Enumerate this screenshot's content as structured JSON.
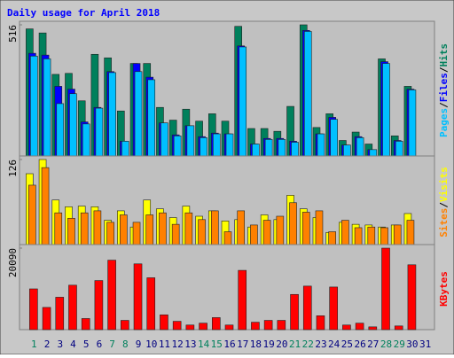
{
  "chart_data": [
    {
      "type": "bar",
      "title": "Daily usage for April 2018",
      "categories": [
        "1",
        "2",
        "3",
        "4",
        "5",
        "6",
        "7",
        "8",
        "9",
        "10",
        "11",
        "12",
        "13",
        "14",
        "15",
        "16",
        "17",
        "18",
        "19",
        "20",
        "21",
        "22",
        "23",
        "24",
        "25",
        "26",
        "27",
        "28",
        "29",
        "30",
        "31"
      ],
      "category_colors": [
        "#00805C",
        "#000080",
        "#000080",
        "#000080",
        "#000080",
        "#000080",
        "#00805C",
        "#00805C",
        "#000080",
        "#000080",
        "#000080",
        "#000080",
        "#000080",
        "#00805C",
        "#00805C",
        "#000080",
        "#000080",
        "#000080",
        "#000080",
        "#000080",
        "#00805C",
        "#00805C",
        "#000080",
        "#000080",
        "#000080",
        "#000080",
        "#000080",
        "#00805C",
        "#00805C",
        "#000080",
        "#000080"
      ],
      "separator": "/",
      "ylim": [
        0,
        516
      ],
      "yticks": [
        516
      ],
      "series": [
        {
          "name": "Hits",
          "color": "#00805C",
          "values": [
            500,
            484,
            321,
            325,
            217,
            400,
            386,
            177,
            364,
            364,
            191,
            141,
            184,
            137,
            166,
            137,
            510,
            108,
            108,
            97,
            195,
            516,
            112,
            166,
            61,
            94,
            47,
            382,
            79,
            274,
            null
          ]
        },
        {
          "name": "Files",
          "color": "#0000FF",
          "values": [
            404,
            397,
            274,
            263,
            134,
            191,
            332,
            58,
            364,
            310,
            130,
            83,
            119,
            76,
            90,
            87,
            433,
            47,
            69,
            69,
            58,
            494,
            87,
            152,
            43,
            76,
            25,
            371,
            61,
            263,
            null
          ]
        },
        {
          "name": "Pages",
          "color": "#00C0FF",
          "values": [
            393,
            382,
            206,
            245,
            126,
            188,
            328,
            58,
            332,
            300,
            130,
            79,
            119,
            72,
            87,
            87,
            429,
            47,
            65,
            65,
            54,
            490,
            87,
            144,
            43,
            72,
            25,
            364,
            58,
            260,
            null
          ]
        }
      ]
    },
    {
      "type": "bar",
      "ylim": [
        0,
        126
      ],
      "yticks": [
        126
      ],
      "series": [
        {
          "name": "Visits",
          "color": "#FFFF00",
          "values": [
            105,
            126,
            66,
            56,
            57,
            56,
            36,
            50,
            26,
            66,
            53,
            40,
            57,
            42,
            50,
            35,
            37,
            26,
            44,
            37,
            73,
            53,
            40,
            18,
            33,
            30,
            29,
            26,
            29,
            46,
            null
          ]
        },
        {
          "name": "Sites",
          "color": "#FF8000",
          "values": [
            88,
            114,
            47,
            39,
            47,
            50,
            33,
            44,
            33,
            44,
            47,
            30,
            47,
            37,
            50,
            19,
            50,
            29,
            36,
            42,
            62,
            48,
            50,
            19,
            36,
            25,
            26,
            25,
            29,
            36,
            null
          ]
        }
      ]
    },
    {
      "type": "bar",
      "ylim": [
        0,
        20090
      ],
      "yticks": [
        20090
      ],
      "series": [
        {
          "name": "KBytes",
          "color": "#FF0000",
          "values": [
            10045,
            5479,
            7990,
            10958,
            2740,
            12100,
            17122,
            2283,
            16209,
            12785,
            3653,
            2055,
            1141,
            1598,
            2968,
            1141,
            14611,
            1826,
            2283,
            2283,
            8675,
            10730,
            3424,
            10502,
            1141,
            1598,
            685,
            20090,
            913,
            15981,
            null
          ]
        }
      ]
    }
  ]
}
